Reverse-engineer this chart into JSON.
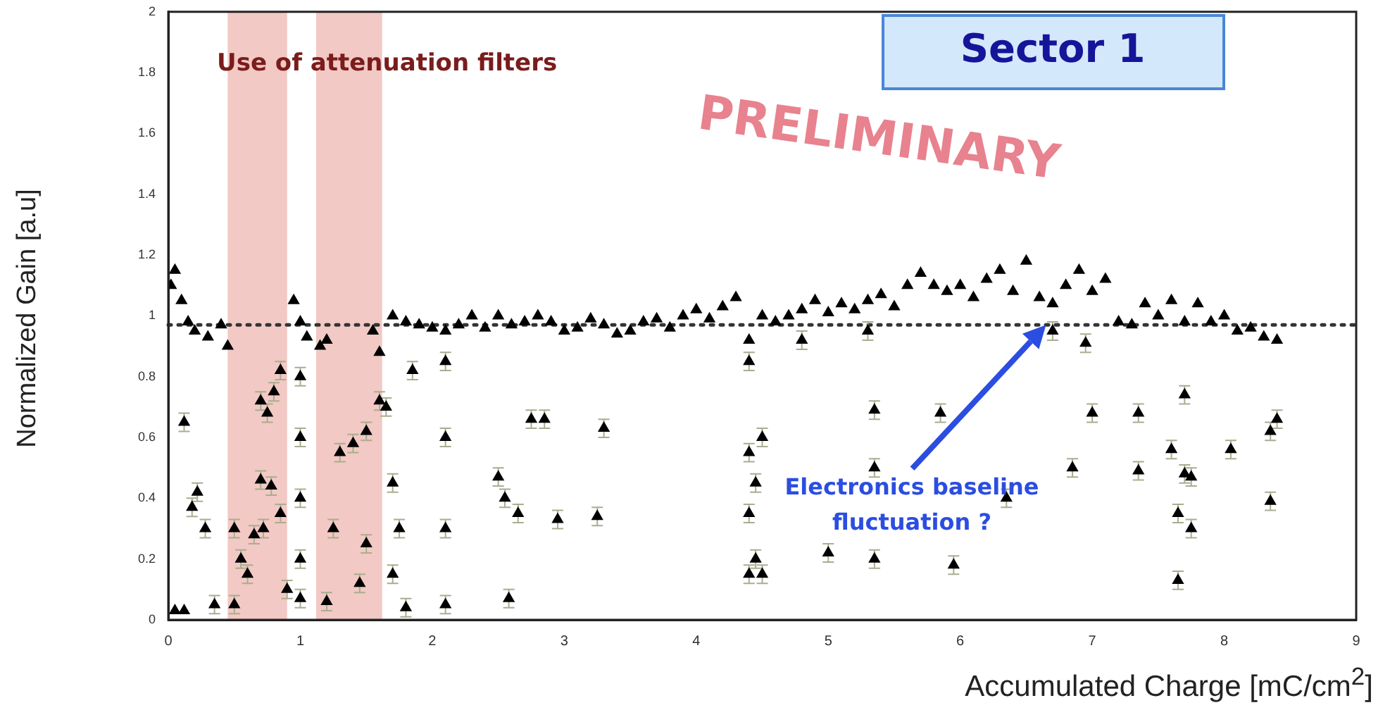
{
  "chart_data": {
    "type": "scatter",
    "title": "Sector 1",
    "xlabel": "Accumulated Charge [mC/cm$^{2}$]",
    "ylabel": "Normalized Gain [a.u]",
    "xlim": [
      0,
      9
    ],
    "xticks": [
      0,
      1,
      2,
      3,
      4,
      5,
      6,
      7,
      8,
      9
    ],
    "ylim": [
      0,
      2
    ],
    "yticks": [
      0,
      0.2,
      0.4,
      0.6,
      0.8,
      1,
      1.2,
      1.4,
      1.6,
      1.8,
      2
    ],
    "grid": false,
    "legend": false,
    "marker": "triangle",
    "bands": [
      {
        "axis": "x",
        "from": 0.45,
        "to": 0.9,
        "color": "#f2c9c4"
      },
      {
        "axis": "x",
        "from": 1.12,
        "to": 1.62,
        "color": "#f2c9c4"
      }
    ],
    "ref_lines": [
      {
        "axis": "y",
        "value": 0.97,
        "line_style": "dotted",
        "color": "#333333"
      }
    ],
    "annotations": [
      "Use of attenuation filters",
      "PRELIMINARY",
      "Electronics baseline fluctuation ?"
    ],
    "series": [
      {
        "color": "#000000",
        "x": [
          0.02,
          0.05,
          0.1,
          0.15,
          0.2,
          0.3,
          0.4,
          0.45,
          0.95,
          1.0,
          1.05,
          1.15,
          1.2,
          1.55,
          1.6,
          1.7,
          1.8,
          1.9,
          2.0,
          2.1,
          2.2,
          2.3,
          2.4,
          2.5,
          2.6,
          2.7,
          2.8,
          2.9,
          3.0,
          3.1,
          3.2,
          3.3,
          3.4,
          3.5,
          3.6,
          3.7,
          3.8,
          3.9,
          4.0,
          4.1,
          4.2,
          4.3,
          4.4,
          4.5,
          4.6,
          4.7,
          4.8,
          4.9,
          5.0,
          5.1,
          5.2,
          5.3,
          5.4,
          5.5,
          5.6,
          5.7,
          5.8,
          5.9,
          6.0,
          6.1,
          6.2,
          6.3,
          6.4,
          6.5,
          6.6,
          6.7,
          6.8,
          6.9,
          7.0,
          7.1,
          7.2,
          7.3,
          7.4,
          7.5,
          7.6,
          7.7,
          7.8,
          7.9,
          8.0,
          8.1,
          8.2,
          8.3,
          8.4
        ],
        "values": [
          1.1,
          1.15,
          1.05,
          0.98,
          0.95,
          0.93,
          0.97,
          0.9,
          1.05,
          0.98,
          0.93,
          0.9,
          0.92,
          0.95,
          0.88,
          1.0,
          0.98,
          0.97,
          0.96,
          0.95,
          0.97,
          1.0,
          0.96,
          1.0,
          0.97,
          0.98,
          1.0,
          0.98,
          0.95,
          0.96,
          0.99,
          0.97,
          0.94,
          0.95,
          0.98,
          0.99,
          0.96,
          1.0,
          1.02,
          0.99,
          1.03,
          1.06,
          0.92,
          1.0,
          0.98,
          1.0,
          1.02,
          1.05,
          1.01,
          1.04,
          1.02,
          1.05,
          1.07,
          1.03,
          1.1,
          1.14,
          1.1,
          1.08,
          1.1,
          1.06,
          1.12,
          1.15,
          1.08,
          1.18,
          1.06,
          1.04,
          1.1,
          1.15,
          1.08,
          1.12,
          0.98,
          0.97,
          1.04,
          1.0,
          1.05,
          0.98,
          1.04,
          0.98,
          1.0,
          0.95,
          0.96,
          0.93,
          0.92
        ]
      },
      {
        "color": "#000000",
        "x": [
          0.12,
          0.22,
          0.18,
          0.28,
          0.05,
          0.12,
          0.35,
          0.5,
          0.55,
          0.5,
          0.6,
          0.65,
          0.7,
          0.75,
          0.8,
          0.7,
          0.78,
          0.72,
          0.85,
          0.85,
          0.9,
          1.0,
          1.0,
          1.0,
          1.0,
          1.0,
          1.2,
          1.25,
          1.3,
          1.4,
          1.5,
          1.5,
          1.45,
          1.6,
          1.65,
          1.7,
          1.75,
          1.7,
          1.8,
          1.85,
          2.1,
          2.1,
          2.1,
          2.1,
          2.5,
          2.55,
          2.65,
          2.75,
          2.85,
          2.95,
          3.25,
          3.3,
          2.58,
          4.4,
          4.4,
          4.45,
          4.4,
          4.45,
          4.5,
          4.4,
          4.5,
          4.8,
          5.0,
          5.3,
          5.35,
          5.35,
          5.35,
          5.85,
          5.95,
          6.35,
          6.7,
          6.85,
          6.95,
          7.0,
          7.35,
          7.35,
          7.6,
          7.65,
          7.65,
          7.7,
          7.7,
          7.75,
          7.75,
          8.05,
          8.35,
          8.35,
          8.4
        ],
        "values": [
          0.65,
          0.42,
          0.37,
          0.3,
          0.03,
          0.03,
          0.05,
          0.3,
          0.2,
          0.05,
          0.15,
          0.28,
          0.72,
          0.68,
          0.75,
          0.46,
          0.44,
          0.3,
          0.35,
          0.82,
          0.1,
          0.8,
          0.6,
          0.4,
          0.2,
          0.07,
          0.06,
          0.3,
          0.55,
          0.58,
          0.62,
          0.25,
          0.12,
          0.72,
          0.7,
          0.45,
          0.3,
          0.15,
          0.04,
          0.82,
          0.85,
          0.6,
          0.3,
          0.05,
          0.47,
          0.4,
          0.35,
          0.66,
          0.66,
          0.33,
          0.34,
          0.63,
          0.07,
          0.85,
          0.55,
          0.45,
          0.35,
          0.2,
          0.15,
          0.15,
          0.6,
          0.92,
          0.22,
          0.95,
          0.69,
          0.5,
          0.2,
          0.68,
          0.18,
          0.4,
          0.95,
          0.5,
          0.91,
          0.68,
          0.68,
          0.49,
          0.56,
          0.35,
          0.13,
          0.48,
          0.74,
          0.3,
          0.47,
          0.56,
          0.39,
          0.62,
          0.66
        ],
        "errors": [
          0.03,
          0.03,
          0.03,
          0.03,
          null,
          null,
          0.03,
          0.03,
          0.03,
          0.03,
          0.03,
          0.03,
          0.03,
          0.03,
          0.03,
          0.03,
          0.03,
          0.03,
          0.03,
          0.03,
          0.03,
          0.03,
          0.03,
          0.03,
          0.03,
          0.03,
          0.03,
          0.03,
          0.03,
          0.03,
          0.03,
          0.03,
          0.03,
          0.03,
          0.03,
          0.03,
          0.03,
          0.03,
          0.03,
          0.03,
          0.03,
          0.03,
          0.03,
          0.03,
          0.03,
          0.03,
          0.03,
          0.03,
          0.03,
          0.03,
          0.03,
          0.03,
          0.03,
          0.03,
          0.03,
          0.03,
          0.03,
          0.03,
          0.03,
          0.03,
          0.03,
          0.03,
          0.03,
          0.03,
          0.03,
          0.03,
          0.03,
          0.03,
          0.03,
          0.03,
          0.03,
          0.03,
          0.03,
          0.03,
          0.03,
          0.03,
          0.03,
          0.03,
          0.03,
          0.03,
          0.03,
          0.03,
          0.03,
          0.03,
          0.03,
          0.03,
          0.03
        ]
      }
    ]
  }
}
